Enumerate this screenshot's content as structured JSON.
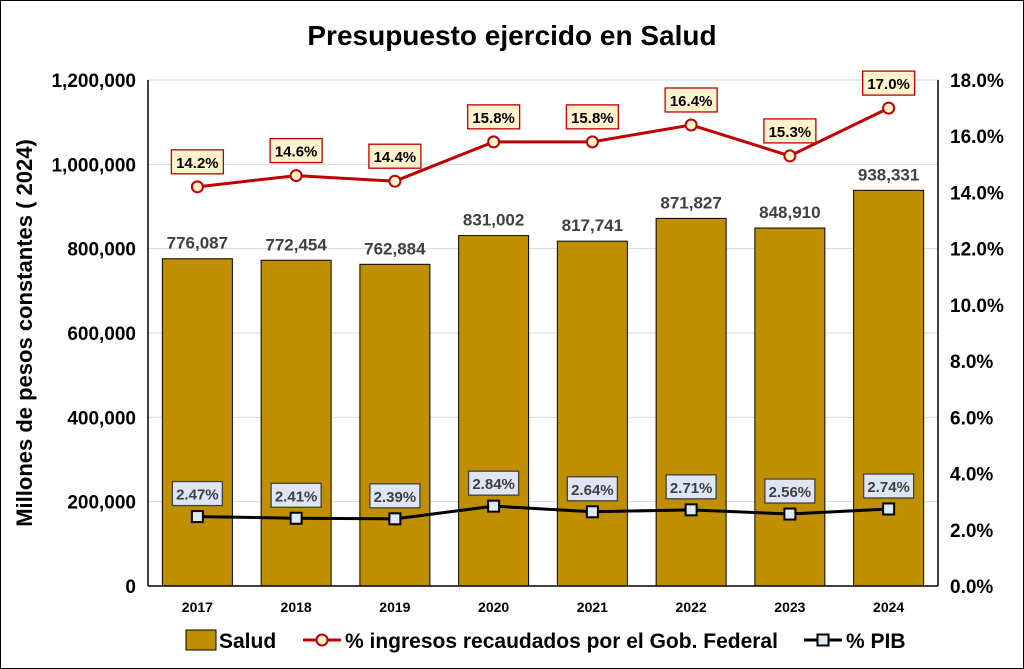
{
  "chart_data": {
    "type": "bar",
    "title": "Presupuesto ejercido en Salud",
    "xlabel": "",
    "ylabel": "Millones de pesos constantes ( 2024)",
    "ylim": [
      0,
      1200000
    ],
    "y2lim": [
      0,
      18
    ],
    "yticks": [
      "0",
      "200,000",
      "400,000",
      "600,000",
      "800,000",
      "1,000,000",
      "1,200,000"
    ],
    "y2ticks": [
      "0.0%",
      "2.0%",
      "4.0%",
      "6.0%",
      "8.0%",
      "10.0%",
      "12.0%",
      "14.0%",
      "16.0%",
      "18.0%"
    ],
    "grid": true,
    "legend_position": "bottom",
    "categories": [
      "2017",
      "2018",
      "2019",
      "2020",
      "2021",
      "2022",
      "2023",
      "2024"
    ],
    "series": [
      {
        "name": "Salud",
        "type": "bar",
        "axis": "left",
        "values": [
          776087,
          772454,
          762884,
          831002,
          817741,
          871827,
          848910,
          938331
        ],
        "labels": [
          "776,087",
          "772,454",
          "762,884",
          "831,002",
          "817,741",
          "871,827",
          "848,910",
          "938,331"
        ],
        "color": "#BF8F00"
      },
      {
        "name": "% ingresos recaudados por el Gob. Federal",
        "type": "line",
        "axis": "right",
        "values": [
          14.2,
          14.6,
          14.4,
          15.8,
          15.8,
          16.4,
          15.3,
          17.0
        ],
        "labels": [
          "14.2%",
          "14.6%",
          "14.4%",
          "15.8%",
          "15.8%",
          "16.4%",
          "15.3%",
          "17.0%"
        ],
        "color": "#C00000",
        "marker": "circle"
      },
      {
        "name": "% PIB",
        "type": "line",
        "axis": "right",
        "values": [
          2.47,
          2.41,
          2.39,
          2.84,
          2.64,
          2.71,
          2.56,
          2.74
        ],
        "labels": [
          "2.47%",
          "2.41%",
          "2.39%",
          "2.84%",
          "2.64%",
          "2.71%",
          "2.56%",
          "2.74%"
        ],
        "color": "#000000",
        "marker": "square"
      }
    ]
  }
}
